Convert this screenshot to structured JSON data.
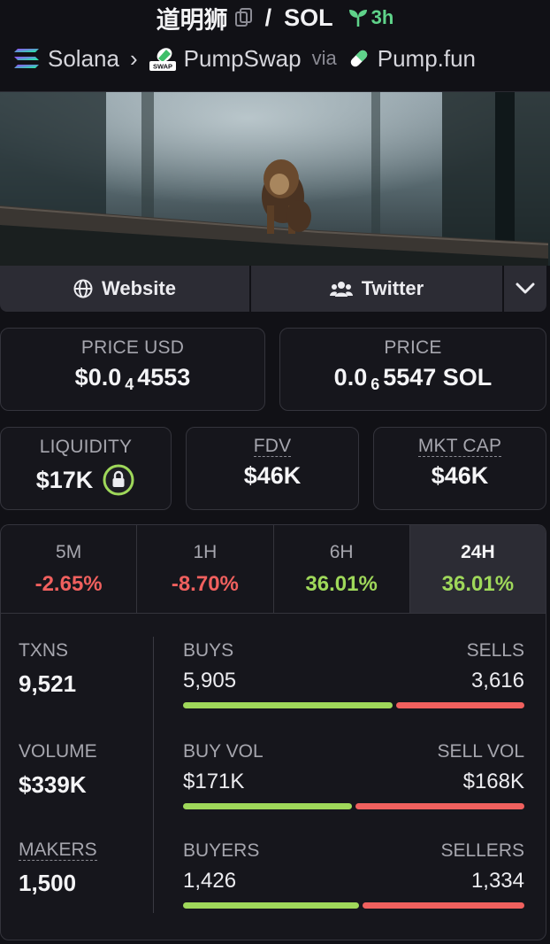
{
  "header": {
    "token_name": "道明狮",
    "separator": "/",
    "quote": "SOL",
    "age": "3h",
    "chain": "Solana",
    "dex": "PumpSwap",
    "dex_badge": "SWAP",
    "via": "via",
    "launchpad": "Pump.fun"
  },
  "links": {
    "website": "Website",
    "twitter": "Twitter"
  },
  "price": {
    "usd_label": "PRICE USD",
    "usd_prefix": "$0.0",
    "usd_zeros": "4",
    "usd_digits": "4553",
    "native_label": "PRICE",
    "native_prefix": "0.0",
    "native_zeros": "6",
    "native_digits": "5547 SOL"
  },
  "metrics": {
    "liquidity_label": "LIQUIDITY",
    "liquidity": "$17K",
    "fdv_label": "FDV",
    "fdv": "$46K",
    "mcap_label": "MKT CAP",
    "mcap": "$46K"
  },
  "timeframes": [
    {
      "label": "5M",
      "change": "-2.65%",
      "dir": "neg"
    },
    {
      "label": "1H",
      "change": "-8.70%",
      "dir": "neg"
    },
    {
      "label": "6H",
      "change": "36.01%",
      "dir": "pos"
    },
    {
      "label": "24H",
      "change": "36.01%",
      "dir": "pos",
      "active": true
    }
  ],
  "stats": {
    "txns_label": "TXNS",
    "txns": "9,521",
    "volume_label": "VOLUME",
    "volume": "$339K",
    "makers_label": "MAKERS",
    "makers": "1,500",
    "buys_label": "BUYS",
    "buys": "5,905",
    "sells_label": "SELLS",
    "sells": "3,616",
    "buy_vol_label": "BUY VOL",
    "buy_vol": "$171K",
    "sell_vol_label": "SELL VOL",
    "sell_vol": "$168K",
    "buyers_label": "BUYERS",
    "buyers": "1,426",
    "sellers_label": "SELLERS",
    "sellers": "1,334"
  },
  "ratios": {
    "buys_share": 0.62,
    "buy_vol_share": 0.5,
    "buyers_share": 0.52
  },
  "colors": {
    "positive": "#9fd85a",
    "negative": "#f0605e",
    "age": "#5fd38a",
    "lock_ring": "#9fd85a"
  },
  "icons": {
    "copy": "copy-icon",
    "age": "seedling-icon",
    "chain": "solana-icon",
    "dex": "pumpswap-icon",
    "launchpad": "pill-icon",
    "website": "globe-icon",
    "twitter": "users-icon",
    "more": "chevron-down-icon",
    "lock": "lock-icon"
  }
}
